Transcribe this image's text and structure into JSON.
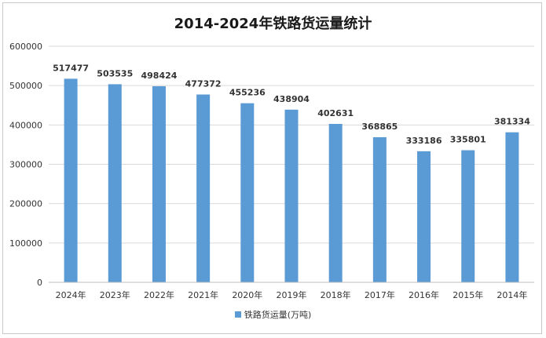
{
  "chart_data": {
    "type": "bar",
    "title": "2014-2024年铁路货运量统计",
    "categories": [
      "2024年",
      "2023年",
      "2022年",
      "2021年",
      "2020年",
      "2019年",
      "2018年",
      "2017年",
      "2016年",
      "2015年",
      "2014年"
    ],
    "series": [
      {
        "name": "铁路货运量(万吨)",
        "values": [
          517477,
          503535,
          498424,
          477372,
          455236,
          438904,
          402631,
          368865,
          333186,
          335801,
          381334
        ],
        "color": "#5b9bd5"
      }
    ],
    "yticks": [
      "0",
      "100000",
      "200000",
      "300000",
      "400000",
      "500000",
      "600000"
    ],
    "ylim": [
      0,
      600000
    ],
    "xlabel": "",
    "ylabel": "",
    "grid": true,
    "legend_position": "bottom"
  }
}
